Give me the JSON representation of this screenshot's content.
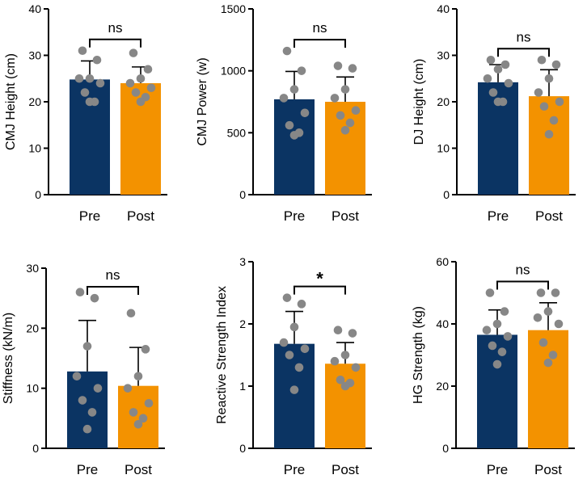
{
  "colors": {
    "pre": "#0b3463",
    "post": "#f39200",
    "dot": "#878787",
    "axis": "#000000"
  },
  "chart_data": [
    {
      "type": "bar",
      "title": "",
      "xlabel": "",
      "ylabel": "CMJ Height (cm)",
      "categories": [
        "Pre",
        "Post"
      ],
      "ylim": [
        0,
        40
      ],
      "yticks": [
        0,
        10,
        20,
        30,
        40
      ],
      "values": [
        24.8,
        24.0
      ],
      "error": [
        4.0,
        3.5
      ],
      "points": [
        [
          31,
          29,
          25,
          25,
          24,
          22,
          20,
          20
        ],
        [
          30.5,
          27,
          25,
          24,
          23,
          22,
          21,
          20
        ]
      ],
      "significance": "ns"
    },
    {
      "type": "bar",
      "title": "",
      "xlabel": "",
      "ylabel": "CMJ Power (w)",
      "categories": [
        "Pre",
        "Post"
      ],
      "ylim": [
        0,
        1500
      ],
      "yticks": [
        0,
        500,
        1000,
        1500
      ],
      "values": [
        770,
        750
      ],
      "error": [
        225,
        200
      ],
      "points": [
        [
          1160,
          1000,
          850,
          780,
          660,
          560,
          500,
          480
        ],
        [
          1040,
          1020,
          850,
          780,
          680,
          640,
          580,
          520
        ]
      ],
      "significance": "ns"
    },
    {
      "type": "bar",
      "title": "",
      "xlabel": "",
      "ylabel": "DJ Height (cm)",
      "categories": [
        "Pre",
        "Post"
      ],
      "ylim": [
        0,
        40
      ],
      "yticks": [
        0,
        10,
        20,
        30,
        40
      ],
      "values": [
        24.2,
        21.2
      ],
      "error": [
        3.8,
        5.7
      ],
      "points": [
        [
          29,
          28,
          27,
          25,
          24,
          22,
          20,
          20
        ],
        [
          29,
          28,
          25,
          22,
          20,
          19,
          16,
          13
        ]
      ],
      "significance": "ns"
    },
    {
      "type": "bar",
      "title": "",
      "xlabel": "",
      "ylabel": "Stiffness (kN/m)",
      "categories": [
        "Pre",
        "Post"
      ],
      "ylim": [
        0,
        30
      ],
      "yticks": [
        0,
        10,
        20,
        30
      ],
      "values": [
        12.8,
        10.4
      ],
      "error": [
        8.5,
        6.4
      ],
      "points": [
        [
          26,
          25,
          17,
          12,
          10,
          8,
          6,
          3.2
        ],
        [
          22.5,
          16.5,
          12,
          10,
          7.5,
          6,
          5,
          4
        ]
      ],
      "significance": "ns"
    },
    {
      "type": "bar",
      "title": "",
      "xlabel": "",
      "ylabel": "Reactive Strength Index",
      "categories": [
        "Pre",
        "Post"
      ],
      "ylim": [
        0,
        3
      ],
      "yticks": [
        0,
        1,
        2,
        3
      ],
      "values": [
        1.68,
        1.36
      ],
      "error": [
        0.52,
        0.34
      ],
      "points": [
        [
          2.42,
          2.32,
          1.95,
          1.7,
          1.6,
          1.5,
          1.3,
          0.94
        ],
        [
          1.9,
          1.85,
          1.5,
          1.4,
          1.3,
          1.1,
          1.05,
          1.0
        ]
      ],
      "significance": "*"
    },
    {
      "type": "bar",
      "title": "",
      "xlabel": "",
      "ylabel": "HG Strength (kg)",
      "categories": [
        "Pre",
        "Post"
      ],
      "ylim": [
        0,
        60
      ],
      "yticks": [
        0,
        20,
        40,
        60
      ],
      "values": [
        36.5,
        38.0
      ],
      "error": [
        8.0,
        8.8
      ],
      "points": [
        [
          50,
          44,
          40,
          38,
          36,
          33,
          31,
          27
        ],
        [
          50,
          50,
          44,
          42,
          40,
          34,
          30,
          27.5
        ]
      ],
      "significance": "ns"
    }
  ]
}
